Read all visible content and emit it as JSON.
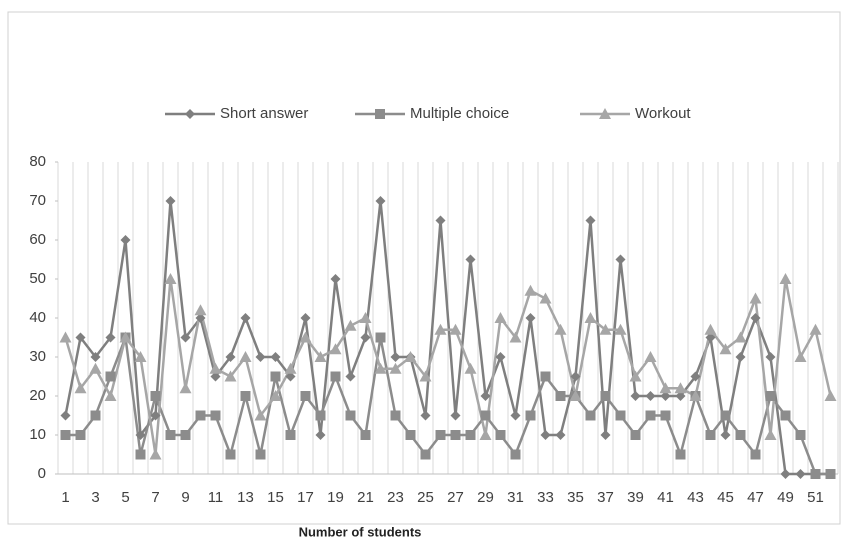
{
  "chart_data": {
    "type": "line",
    "x_label": "Number of students",
    "categories": [
      "1",
      null,
      "3",
      null,
      "5",
      null,
      "7",
      null,
      "9",
      null,
      "11",
      null,
      "13",
      null,
      "15",
      null,
      "17",
      null,
      "19",
      null,
      "21",
      null,
      "23",
      null,
      "25",
      null,
      "27",
      null,
      "29",
      null,
      "31",
      null,
      "33",
      null,
      "35",
      null,
      "37",
      null,
      "39",
      null,
      "41",
      null,
      "43",
      null,
      "45",
      null,
      "47",
      null,
      "49",
      null,
      "51",
      null
    ],
    "series": [
      {
        "name": "Short answer",
        "color": "#7f7f7f",
        "marker": "diamond",
        "values": [
          15,
          35,
          30,
          35,
          60,
          10,
          15,
          70,
          35,
          40,
          25,
          30,
          40,
          30,
          30,
          25,
          40,
          10,
          50,
          25,
          35,
          70,
          30,
          30,
          15,
          65,
          15,
          55,
          20,
          30,
          15,
          40,
          10,
          10,
          25,
          65,
          10,
          55,
          20,
          20,
          20,
          20,
          25,
          35,
          10,
          30,
          40,
          30,
          0,
          0,
          0,
          0
        ]
      },
      {
        "name": "Multiple choice",
        "color": "#8c8c8c",
        "marker": "square",
        "values": [
          10,
          10,
          15,
          25,
          35,
          5,
          20,
          10,
          10,
          15,
          15,
          5,
          20,
          5,
          25,
          10,
          20,
          15,
          25,
          15,
          10,
          35,
          15,
          10,
          5,
          10,
          10,
          10,
          15,
          10,
          5,
          15,
          25,
          20,
          20,
          15,
          20,
          15,
          10,
          15,
          15,
          5,
          20,
          10,
          15,
          10,
          5,
          20,
          15,
          10,
          0,
          0
        ]
      },
      {
        "name": "Workout",
        "color": "#a6a6a6",
        "marker": "triangle",
        "values": [
          35,
          22,
          27,
          20,
          35,
          30,
          5,
          50,
          22,
          42,
          27,
          25,
          30,
          15,
          20,
          27,
          35,
          30,
          32,
          38,
          40,
          27,
          27,
          30,
          25,
          37,
          37,
          27,
          10,
          40,
          35,
          47,
          45,
          37,
          20,
          40,
          37,
          37,
          25,
          30,
          22,
          22,
          20,
          37,
          32,
          35,
          45,
          10,
          50,
          30,
          37,
          20
        ]
      }
    ],
    "ylim": [
      0,
      80
    ],
    "yticks": [
      0,
      10,
      20,
      30,
      40,
      50,
      60,
      70,
      80
    ],
    "grid": "x",
    "legend": "top"
  }
}
